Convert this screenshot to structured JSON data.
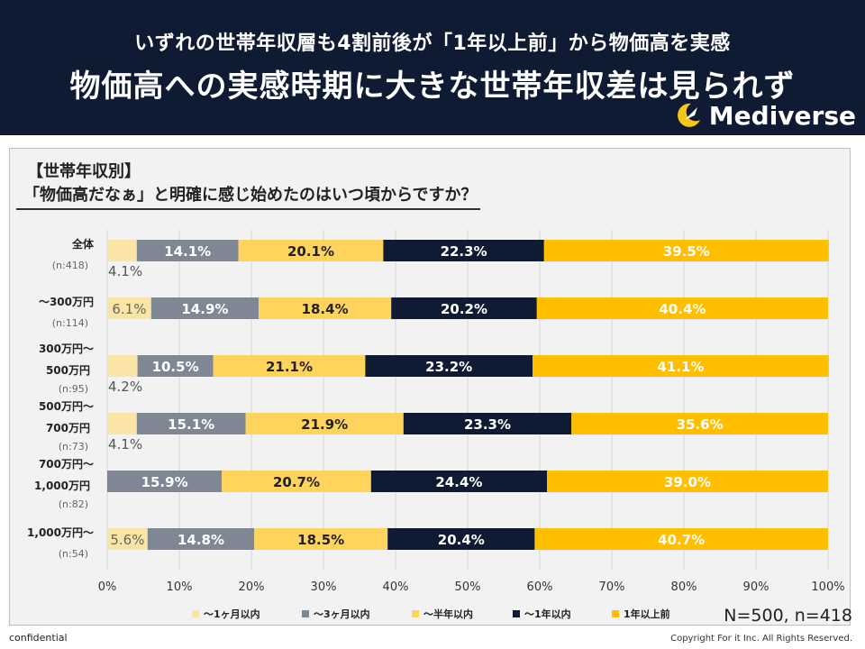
{
  "header": {
    "title_line1": "いずれの世帯年収層も4割前後が「1年以上前」から物価高を実感",
    "title_line2": "物価高への実感時期に大きな世帯年収差は見られず",
    "logo_text": "Mediverse",
    "logo_icon": "moon-rocket-icon"
  },
  "question": {
    "heading": "【世帯年収別】",
    "text": "「物価高だなぁ」と明確に感じ始めたのはいつ頃からですか？"
  },
  "sample_note": "N=500, n=418",
  "footer": {
    "confidential": "confidential",
    "copyright": "Copyright For it Inc. All Rights Reserved."
  },
  "colors": {
    "header_bg": "#0f1b33",
    "logo_accent": "#f5c518"
  },
  "chart_data": {
    "type": "bar",
    "orientation": "horizontal",
    "stacked": "100%",
    "categories": [
      {
        "label_lines": [
          "全体"
        ],
        "n": "(n:418)"
      },
      {
        "label_lines": [
          "～300万円"
        ],
        "n": "(n:114)"
      },
      {
        "label_lines": [
          "300万円～",
          "500万円"
        ],
        "n": "(n:95)"
      },
      {
        "label_lines": [
          "500万円～",
          "700万円"
        ],
        "n": "(n:73)"
      },
      {
        "label_lines": [
          "700万円～",
          "1,000万円"
        ],
        "n": "(n:82)"
      },
      {
        "label_lines": [
          "1,000万円～"
        ],
        "n": "(n:54)"
      }
    ],
    "series": [
      {
        "name": "～1ヶ月以内",
        "color": "#fbe5a6",
        "label_color": "#555555",
        "values": [
          4.1,
          6.1,
          4.2,
          4.1,
          0,
          5.6
        ]
      },
      {
        "name": "～3ヶ月以内",
        "color": "#7f8794",
        "label_color": "#ffffff",
        "values": [
          14.1,
          14.9,
          10.5,
          15.1,
          15.9,
          14.8
        ]
      },
      {
        "name": "～半年以内",
        "color": "#ffd45c",
        "label_color": "#222222",
        "values": [
          20.1,
          18.4,
          21.1,
          21.9,
          20.7,
          18.5
        ]
      },
      {
        "name": "～1年以内",
        "color": "#0f1b33",
        "label_color": "#ffffff",
        "values": [
          22.3,
          20.2,
          23.2,
          23.3,
          24.4,
          20.4
        ]
      },
      {
        "name": "1年以上前",
        "color": "#ffbf00",
        "label_color": "#ffffff",
        "values": [
          39.5,
          40.4,
          41.1,
          35.6,
          39.0,
          40.7
        ]
      }
    ],
    "xlim": [
      0,
      100
    ],
    "xticks": [
      "0%",
      "10%",
      "20%",
      "30%",
      "40%",
      "50%",
      "60%",
      "70%",
      "80%",
      "90%",
      "100%"
    ],
    "legend_position": "bottom",
    "grid": true
  }
}
